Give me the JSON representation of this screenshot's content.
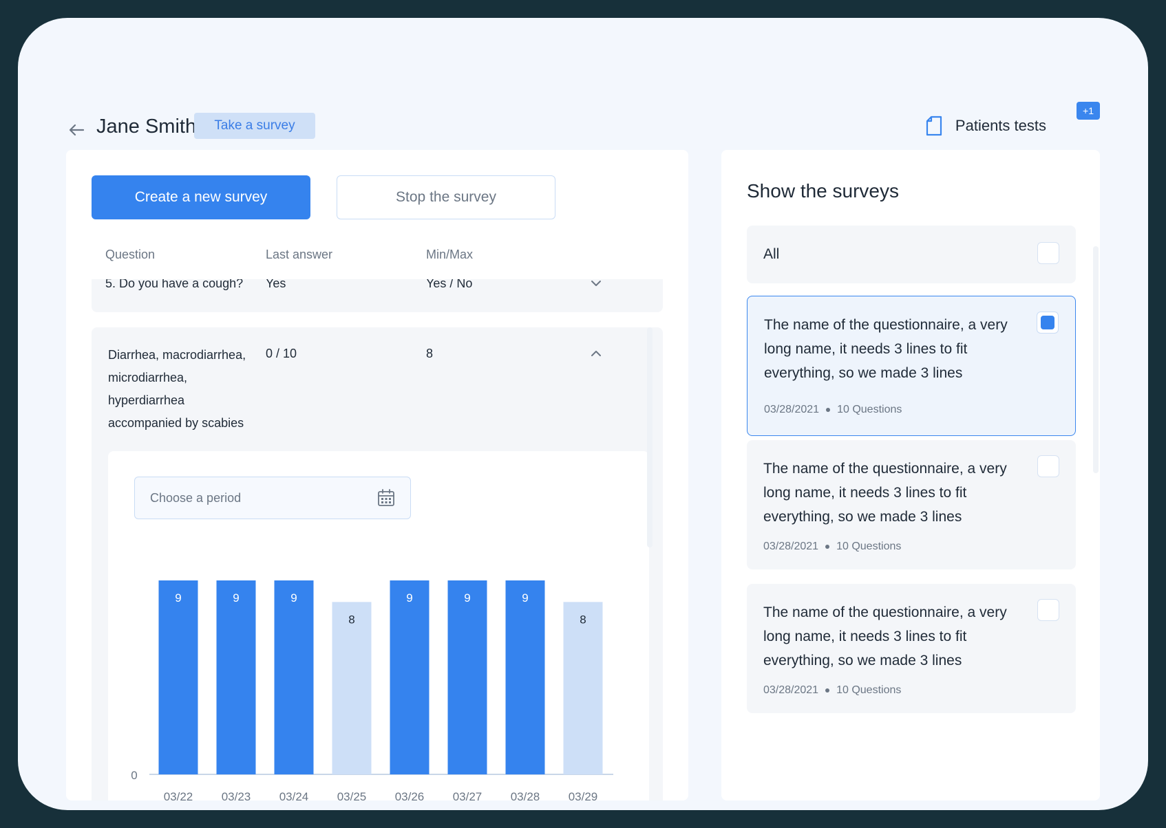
{
  "header": {
    "patient_name": "Jane Smith",
    "take_survey_label": "Take a survey",
    "tests_label": "Patients tests",
    "tests_badge": "+1"
  },
  "actions": {
    "create_label": "Create a new survey",
    "stop_label": "Stop the survey"
  },
  "table": {
    "columns": [
      "Question",
      "Last answer",
      "Min/Max"
    ],
    "rows": [
      {
        "question": "5. Do you have a cough?",
        "last_answer": "Yes",
        "minmax": "Yes / No",
        "expanded": false
      },
      {
        "question": "Diarrhea, macrodiarrhea, microdiarrhea, hyperdiarrhea accompanied by scabies",
        "last_answer": "0 / 10",
        "minmax": "8",
        "expanded": true
      }
    ]
  },
  "period": {
    "placeholder": "Choose a period"
  },
  "chart_data": {
    "type": "bar",
    "categories": [
      "03/22",
      "03/23",
      "03/24",
      "03/25",
      "03/26",
      "03/27",
      "03/28",
      "03/29"
    ],
    "values": [
      9,
      9,
      9,
      8,
      9,
      9,
      9,
      8
    ],
    "ylim": [
      0,
      9
    ],
    "y_tick_labels": [
      "0"
    ],
    "colors": {
      "high": "#3583ee",
      "low": "#cddff7"
    },
    "title": "",
    "xlabel": "",
    "ylabel": ""
  },
  "surveys_panel": {
    "title": "Show the surveys",
    "all_label": "All",
    "items": [
      {
        "name": "The name of the questionnaire, a very long name, it needs 3 lines to fit everything, so we made 3 lines",
        "date": "03/28/2021",
        "questions": "10 Questions",
        "checked": true
      },
      {
        "name": "The name of the questionnaire, a very long name, it needs 3 lines to fit everything, so we made 3 lines",
        "date": "03/28/2021",
        "questions": "10 Questions",
        "checked": false
      },
      {
        "name": "The name of the questionnaire, a very long name, it needs 3 lines to fit everything, so we made 3 lines",
        "date": "03/28/2021",
        "questions": "10 Questions",
        "checked": false
      }
    ]
  },
  "icons": {
    "back": "arrow-left-icon",
    "document": "document-icon",
    "calendar": "calendar-icon",
    "chevron_down": "chevron-down-icon",
    "chevron_up": "chevron-up-icon"
  }
}
